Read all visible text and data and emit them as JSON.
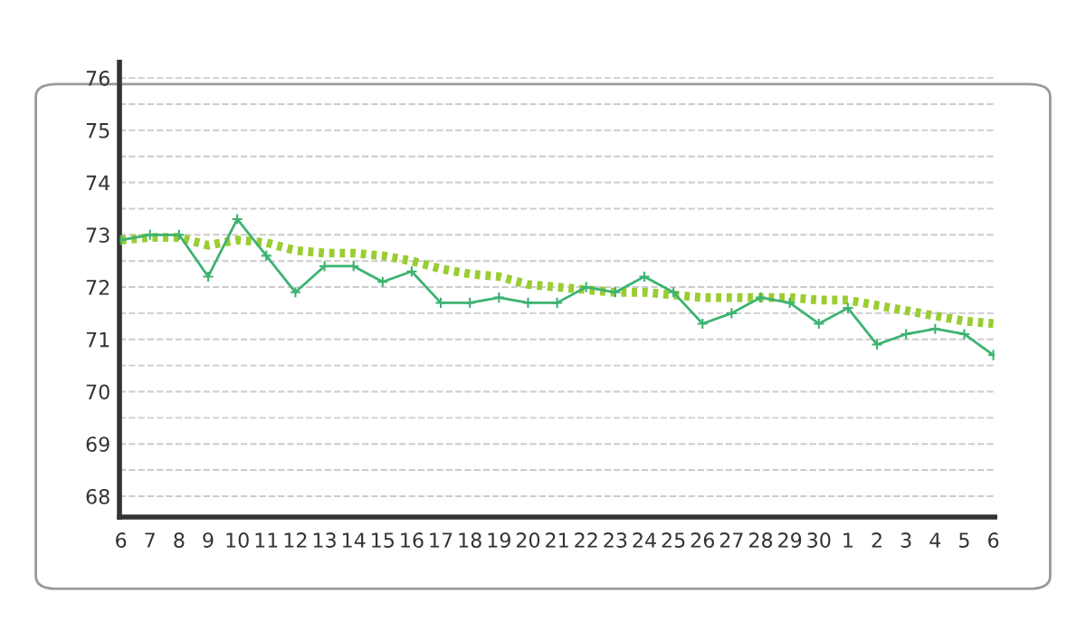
{
  "chart_data": {
    "type": "line",
    "categories": [
      "6",
      "7",
      "8",
      "9",
      "10",
      "11",
      "12",
      "13",
      "14",
      "15",
      "16",
      "17",
      "18",
      "19",
      "20",
      "21",
      "22",
      "23",
      "24",
      "25",
      "26",
      "27",
      "28",
      "29",
      "30",
      "1",
      "2",
      "3",
      "4",
      "5",
      "6"
    ],
    "series": [
      {
        "color": "#3cb371",
        "marker": "cross",
        "line_style": "solid",
        "values": [
          72.9,
          73.0,
          73.0,
          72.2,
          73.3,
          72.6,
          71.9,
          72.4,
          72.4,
          72.1,
          72.3,
          71.7,
          71.7,
          71.8,
          71.7,
          71.7,
          72.0,
          71.9,
          72.2,
          71.9,
          71.3,
          71.5,
          71.8,
          71.7,
          71.3,
          71.6,
          70.9,
          71.1,
          71.2,
          71.1,
          70.7
        ]
      },
      {
        "color": "#9acd32",
        "marker": "none",
        "line_style": "dotted",
        "values": [
          72.9,
          72.95,
          72.95,
          72.8,
          72.9,
          72.85,
          72.7,
          72.65,
          72.65,
          72.6,
          72.5,
          72.35,
          72.25,
          72.2,
          72.05,
          72.0,
          71.95,
          71.9,
          71.9,
          71.85,
          71.8,
          71.8,
          71.8,
          71.8,
          71.75,
          71.75,
          71.65,
          71.55,
          71.45,
          71.35,
          71.3
        ]
      }
    ],
    "ylim": [
      67.6,
      76.3
    ],
    "yticks": [
      68,
      {
        "value": 68.5,
        "label": null
      },
      69,
      {
        "value": 69.5,
        "label": null
      },
      70,
      {
        "value": 70.5,
        "label": null
      },
      71,
      {
        "value": 71.5,
        "label": null
      },
      72,
      {
        "value": 72.5,
        "label": null
      },
      73,
      {
        "value": 73.5,
        "label": null
      },
      74,
      {
        "value": 74.5,
        "label": null
      },
      75,
      {
        "value": 75.5,
        "label": null
      },
      76
    ],
    "grid": "y"
  }
}
